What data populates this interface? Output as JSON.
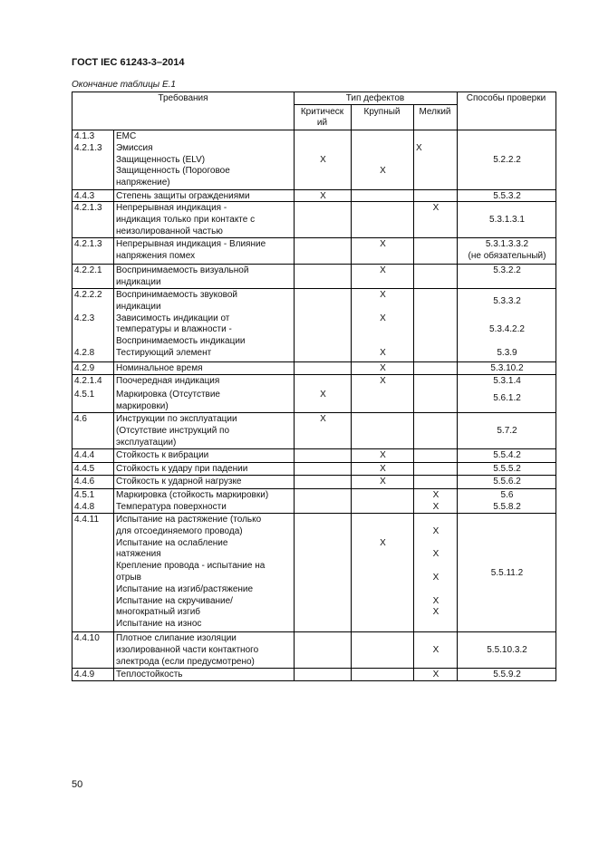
{
  "header": {
    "doc_title": "ГОСТ IEC 61243-3–2014",
    "caption": "Окончание таблицы Е.1"
  },
  "table": {
    "columns": {
      "requirements": "Требования",
      "defect_type": "Тип дефектов",
      "critical_1": "Критическ",
      "critical_2": "ий",
      "major": "Крупный",
      "minor": "Мелкий",
      "method": "Способы проверки"
    },
    "rows": [
      {
        "refs": [
          "4.1.3",
          "4.2.1.3"
        ],
        "text": [
          "ЕМС",
          "Эмиссия",
          "Защищенность (ELV)",
          "Защищенность (Пороговое",
          "напряжение)"
        ],
        "critical": [
          "",
          "",
          "X"
        ],
        "major": [
          "",
          "",
          "",
          "X"
        ],
        "minor": [
          "",
          "X"
        ],
        "method": [
          "",
          "",
          "5.2.2.2"
        ]
      },
      {
        "refs": [
          "4.4.3"
        ],
        "text": [
          "Степень защиты ограждениями"
        ],
        "critical": [
          "X"
        ],
        "major": [],
        "minor": [],
        "method": [
          "5.5.3.2"
        ]
      },
      {
        "refs": [
          "4.2.1.3"
        ],
        "text": [
          "Непрерывная индикация -",
          "индикация только при контакте с",
          "неизолированной частью"
        ],
        "critical": [],
        "major": [],
        "minor": [
          "X"
        ],
        "method": [
          "",
          "5.3.1.3.1"
        ]
      },
      {
        "refs": [
          "4.2.1.3"
        ],
        "text": [
          "Непрерывная индикация - Влияние",
          "напряжения помех"
        ],
        "critical": [],
        "major": [
          "X"
        ],
        "minor": [],
        "method": [
          "5.3.1.3.3.2",
          "(не обязательный)"
        ]
      },
      {
        "refs": [
          "4.2.2.1"
        ],
        "text": [
          "Воспринимаемость визуальной",
          "индикации"
        ],
        "critical": [],
        "major": [
          "X"
        ],
        "minor": [],
        "method": [
          "5.3.2.2"
        ]
      },
      {
        "refs": [
          "4.2.2.2",
          "",
          "4.2.3",
          "",
          "",
          "4.2.8"
        ],
        "text": [
          "Воспринимаемость звуковой",
          "индикации",
          "Зависимость индикации от",
          "температуры и влажности -",
          "Воспринимаемость индикации",
          "Тестирующий элемент"
        ],
        "critical": [],
        "major": [
          "X",
          "",
          "X",
          "",
          "",
          "X"
        ],
        "minor": [],
        "method": [
          "5.3.3.2",
          "",
          "",
          "5.3.4.2.2",
          "",
          "5.3.9"
        ]
      },
      {
        "refs": [
          "4.2.9"
        ],
        "text": [
          "Номинальное время"
        ],
        "critical": [],
        "major": [
          "X"
        ],
        "minor": [],
        "method": [
          "5.3.10.2"
        ]
      },
      {
        "refs": [
          "4.2.1.4",
          "4.5.1"
        ],
        "text": [
          "Поочередная индикация",
          "Маркировка (Отсутствие",
          "маркировки)"
        ],
        "critical": [
          "",
          "X"
        ],
        "major": [
          "X"
        ],
        "minor": [],
        "method": [
          "5.3.1.4",
          "5.6.1.2"
        ]
      },
      {
        "refs": [
          "4.6"
        ],
        "text": [
          "Инструкции по эксплуатации",
          "(Отсутствие инструкций по",
          "эксплуатации)"
        ],
        "critical": [
          "X"
        ],
        "major": [],
        "minor": [],
        "method": [
          "",
          "5.7.2"
        ]
      },
      {
        "refs": [
          "4.4.4"
        ],
        "text": [
          "Стойкость к вибрации"
        ],
        "critical": [],
        "major": [
          "X"
        ],
        "minor": [],
        "method": [
          "5.5.4.2"
        ]
      },
      {
        "refs": [
          "4.4.5"
        ],
        "text": [
          "Стойкость к удару при падении"
        ],
        "critical": [],
        "major": [
          "X"
        ],
        "minor": [],
        "method": [
          "5.5.5.2"
        ]
      },
      {
        "refs": [
          "4.4.6"
        ],
        "text": [
          "Стойкость к ударной нагрузке"
        ],
        "critical": [],
        "major": [
          "X"
        ],
        "minor": [],
        "method": [
          "5.5.6.2"
        ]
      },
      {
        "refs": [
          "4.5.1",
          "4.4.8"
        ],
        "text": [
          "Маркировка (стойкость маркировки)",
          "Температура поверхности"
        ],
        "critical": [],
        "major": [],
        "minor": [
          "X",
          "X"
        ],
        "method": [
          "5.6",
          "5.5.8.2"
        ]
      },
      {
        "refs": [
          "4.4.11"
        ],
        "text": [
          "Испытание на растяжение (только",
          "для отсоединяемого провода)",
          "Испытание на ослабление",
          "натяжения",
          "Крепление провода - испытание на",
          "отрыв",
          "Испытание на изгиб/растяжение",
          "Испытание на скручивание/",
          "многократный изгиб",
          "Испытание на износ"
        ],
        "critical": [],
        "major": [
          "",
          "",
          "X"
        ],
        "minor": [
          "",
          "X",
          "",
          "X",
          "",
          "X",
          "",
          "X",
          "X"
        ],
        "method": [
          "",
          "",
          "",
          "",
          "5.5.11.2"
        ]
      },
      {
        "refs": [
          "4.4.10"
        ],
        "text": [
          "Плотное слипание изоляции",
          "изолированной части контактного",
          "электрода (если предусмотрено)"
        ],
        "critical": [],
        "major": [],
        "minor": [
          "",
          "X"
        ],
        "method": [
          "",
          "5.5.10.3.2"
        ]
      },
      {
        "refs": [
          "4.4.9"
        ],
        "text": [
          "Теплостойкость"
        ],
        "critical": [],
        "major": [],
        "minor": [
          "X"
        ],
        "method": [
          "5.5.9.2"
        ]
      }
    ]
  },
  "footer": {
    "page_number": "50"
  }
}
